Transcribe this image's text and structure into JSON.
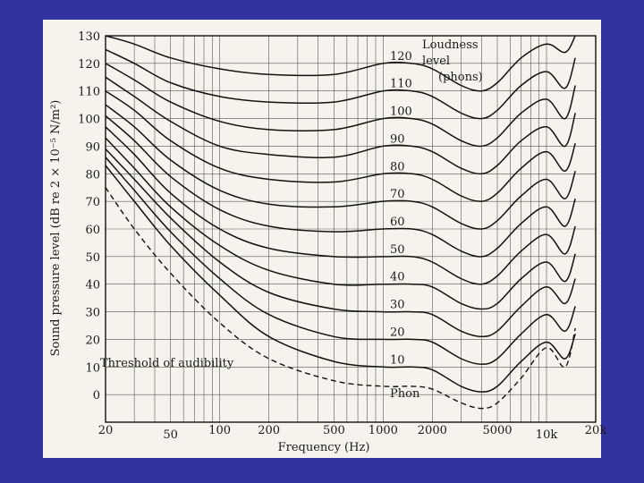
{
  "chart_data": {
    "type": "line",
    "xlabel": "Frequency (Hz)",
    "ylabel": "Sound pressure level (dB re 2 × 10⁻⁵ N/m²)",
    "x_scale": "log",
    "xlim": [
      20,
      20000
    ],
    "ylim": [
      -10,
      130
    ],
    "x_ticks": [
      {
        "v": 20,
        "label": "20"
      },
      {
        "v": 50,
        "label": "50"
      },
      {
        "v": 100,
        "label": "100"
      },
      {
        "v": 200,
        "label": "200"
      },
      {
        "v": 500,
        "label": "500"
      },
      {
        "v": 1000,
        "label": "1000"
      },
      {
        "v": 2000,
        "label": "2000"
      },
      {
        "v": 5000,
        "label": "5000"
      },
      {
        "v": 10000,
        "label": "10k"
      },
      {
        "v": 20000,
        "label": "20k"
      }
    ],
    "y_ticks": [
      0,
      10,
      20,
      30,
      40,
      50,
      60,
      70,
      80,
      90,
      100,
      110,
      120,
      130
    ],
    "grid": true,
    "curve_x": [
      20,
      30,
      50,
      100,
      200,
      500,
      1000,
      1500,
      2000,
      3000,
      4000,
      5000,
      7000,
      10000,
      13000,
      15000
    ],
    "series": [
      {
        "name": "10",
        "values": [
          83,
          70,
          54,
          36,
          21,
          12,
          10,
          10,
          9,
          3,
          1,
          3,
          12,
          19,
          13,
          22
        ]
      },
      {
        "name": "20",
        "values": [
          86,
          74,
          59,
          42,
          29,
          21,
          20,
          20,
          19,
          13,
          11,
          13,
          22,
          29,
          23,
          32
        ]
      },
      {
        "name": "30",
        "values": [
          89,
          78,
          64,
          48,
          37,
          31,
          30,
          30,
          29,
          23,
          21,
          23,
          32,
          39,
          33,
          42
        ]
      },
      {
        "name": "40",
        "values": [
          93,
          82,
          68,
          54,
          45,
          40,
          40,
          40,
          39,
          33,
          31,
          33,
          42,
          48,
          41,
          51
        ]
      },
      {
        "name": "50",
        "values": [
          97,
          87,
          73,
          60,
          53,
          50,
          50,
          50,
          48,
          42,
          40,
          43,
          52,
          58,
          51,
          61
        ]
      },
      {
        "name": "60",
        "values": [
          101,
          92,
          79,
          67,
          61,
          59,
          60,
          60,
          58,
          52,
          50,
          53,
          62,
          68,
          61,
          71
        ]
      },
      {
        "name": "70",
        "values": [
          105,
          97,
          85,
          74,
          69,
          68,
          70,
          70,
          68,
          62,
          60,
          63,
          72,
          78,
          71,
          81
        ]
      },
      {
        "name": "80",
        "values": [
          110,
          103,
          92,
          82,
          78,
          77,
          80,
          80,
          78,
          72,
          70,
          73,
          82,
          88,
          81,
          91
        ]
      },
      {
        "name": "90",
        "values": [
          115,
          108,
          99,
          90,
          87,
          86,
          90,
          90,
          88,
          82,
          80,
          83,
          92,
          97,
          90,
          102
        ]
      },
      {
        "name": "100",
        "values": [
          120,
          114,
          106,
          99,
          96,
          96,
          100,
          100,
          98,
          92,
          90,
          93,
          102,
          107,
          100,
          112
        ]
      },
      {
        "name": "110",
        "values": [
          125,
          120,
          113,
          108,
          106,
          106,
          110,
          110,
          108,
          102,
          100,
          103,
          112,
          117,
          111,
          122
        ]
      },
      {
        "name": "120",
        "values": [
          130,
          127,
          122,
          118,
          116,
          116,
          120,
          120,
          118,
          112,
          110,
          113,
          122,
          127,
          124,
          130
        ]
      }
    ],
    "threshold": {
      "name": "Threshold of audibility",
      "x": [
        20,
        30,
        50,
        100,
        200,
        500,
        1000,
        1500,
        2000,
        3000,
        4000,
        5000,
        7000,
        10000,
        13000,
        15000
      ],
      "values": [
        75,
        60,
        44,
        26,
        13,
        5,
        3,
        3,
        2,
        -3,
        -5,
        -3,
        6,
        17,
        10,
        24
      ]
    },
    "annotations": {
      "loudness_1": "Loudness",
      "loudness_2": "level",
      "loudness_3": "(phons)",
      "threshold": "Threshold of audibility",
      "phon": "Phon"
    }
  }
}
